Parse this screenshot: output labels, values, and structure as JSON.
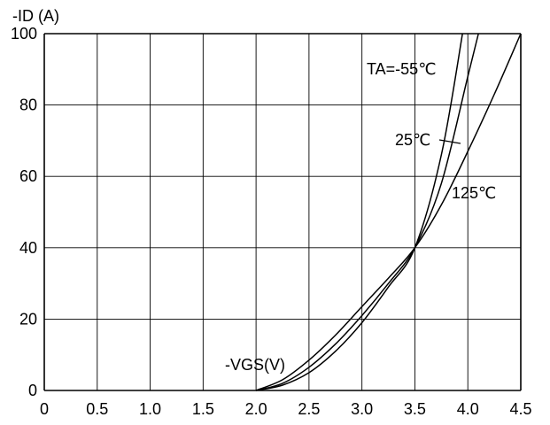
{
  "chart_data": {
    "type": "line",
    "title": "",
    "ylabel": "-ID (A)",
    "xlabel": "-VGS(V)",
    "xlim": [
      0,
      4.5
    ],
    "ylim": [
      0,
      100
    ],
    "grid": true,
    "x_ticks": [
      "0",
      "0.5",
      "1.0",
      "1.5",
      "2.0",
      "2.5",
      "3.0",
      "3.5",
      "4.0",
      "4.5"
    ],
    "y_ticks": [
      "0",
      "20",
      "40",
      "60",
      "80",
      "100"
    ],
    "series": [
      {
        "name": "TA=-55℃",
        "x": [
          2.0,
          2.25,
          2.5,
          2.75,
          3.0,
          3.25,
          3.5,
          3.75,
          3.95
        ],
        "y": [
          0,
          1.5,
          5,
          11,
          19,
          29,
          40,
          66,
          100
        ]
      },
      {
        "name": "25℃",
        "x": [
          2.0,
          2.25,
          2.5,
          2.75,
          3.0,
          3.25,
          3.5,
          3.75,
          4.0,
          4.1
        ],
        "y": [
          0,
          2,
          6.5,
          13,
          21,
          30,
          40,
          58,
          88,
          100
        ]
      },
      {
        "name": "125℃",
        "x": [
          2.0,
          2.25,
          2.5,
          2.75,
          3.0,
          3.25,
          3.5,
          3.75,
          4.0,
          4.25,
          4.5
        ],
        "y": [
          0,
          3,
          8.5,
          15.5,
          23.5,
          31.5,
          40,
          52,
          67,
          83,
          100
        ]
      }
    ],
    "labels": {
      "x_axis": "-VGS(V)",
      "y_axis": "-ID (A)",
      "curve_55": "TA=-55℃",
      "curve_25": "25℃",
      "curve_125": "125℃"
    }
  }
}
